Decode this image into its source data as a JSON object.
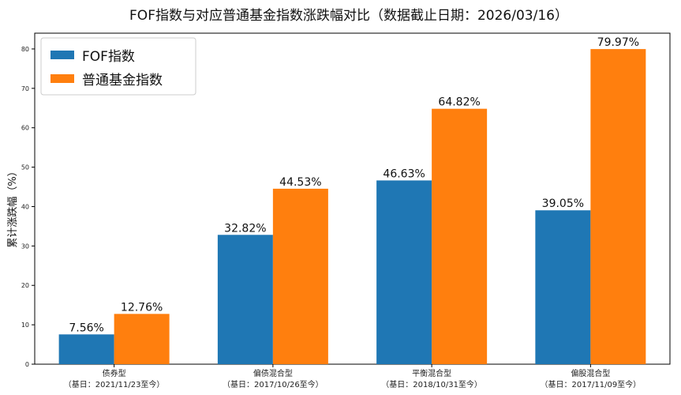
{
  "chart_data": {
    "type": "bar",
    "title": "FOF指数与对应普通基金指数涨跌幅对比（数据截止日期：2026/03/16）",
    "ylabel": "累计涨跌幅（%）",
    "xlabel": "",
    "ylim": [
      0,
      84
    ],
    "yticks": [
      0,
      10,
      20,
      30,
      40,
      50,
      60,
      70,
      80
    ],
    "ytick_labels": [
      "0",
      "10",
      "20",
      "30",
      "40",
      "50",
      "60",
      "70",
      "80"
    ],
    "categories": [
      "债券型",
      "偏债混合型",
      "平衡混合型",
      "偏股混合型"
    ],
    "category_subtitles": [
      "（基日：2021/11/23至今）",
      "（基日：2017/10/26至今）",
      "（基日：2018/10/31至今）",
      "（基日：2017/11/09至今）"
    ],
    "series": [
      {
        "name": "FOF指数",
        "color": "#1f77b4",
        "values": [
          7.56,
          32.82,
          46.63,
          39.05
        ],
        "labels": [
          "7.56%",
          "32.82%",
          "46.63%",
          "39.05%"
        ]
      },
      {
        "name": "普通基金指数",
        "color": "#ff7f0e",
        "values": [
          12.76,
          44.53,
          64.82,
          79.97
        ],
        "labels": [
          "12.76%",
          "44.53%",
          "64.82%",
          "79.97%"
        ]
      }
    ],
    "legend": "top-left",
    "grid": false
  }
}
